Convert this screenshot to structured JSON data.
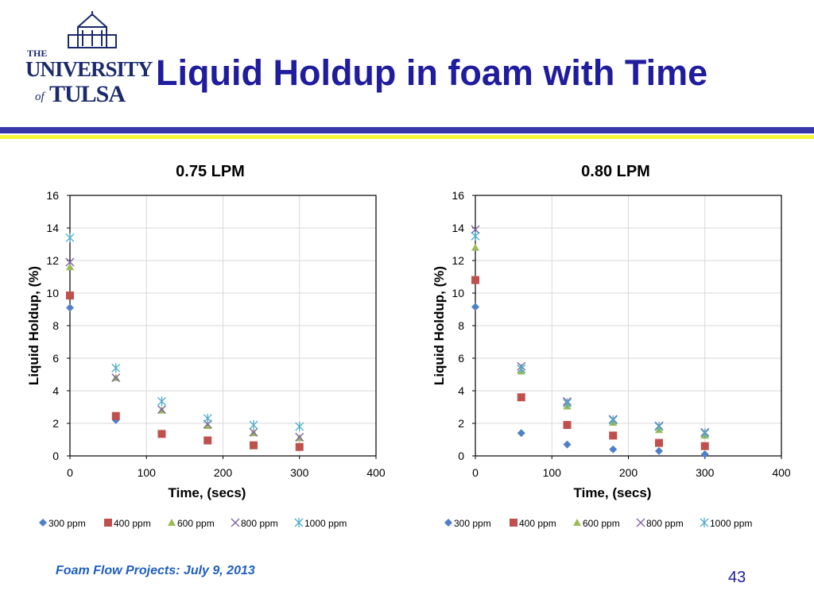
{
  "header": {
    "title": "Liquid Holdup in foam with Time",
    "logo_the": "THE",
    "logo_university": "UNIVERSITY",
    "logo_of": "of",
    "logo_tulsa": "TULSA"
  },
  "footer": {
    "text": "Foam Flow Projects: July 9, 2013",
    "page_number": "43"
  },
  "colors": {
    "title": "#1f1c9e",
    "band_blue": "#3636a8",
    "band_yellow": "#f5f53a",
    "series": [
      "#4f7fc8",
      "#c0504d",
      "#9bbb59",
      "#8064a2",
      "#4bacc6"
    ]
  },
  "chart_data": [
    {
      "type": "scatter",
      "title": "0.75 LPM",
      "xlabel": "Time, (secs)",
      "ylabel": "Liquid Holdup, (%)",
      "xlim": [
        0,
        400
      ],
      "ylim": [
        0,
        16
      ],
      "xticks": [
        0,
        100,
        200,
        300,
        400
      ],
      "yticks": [
        0,
        2,
        4,
        6,
        8,
        10,
        12,
        14,
        16
      ],
      "grid": "vertical",
      "legend": "bottom",
      "series": [
        {
          "name": "300 ppm",
          "marker": "diamond",
          "x": [
            0,
            60,
            120,
            180,
            240,
            300
          ],
          "y": [
            9.1,
            2.2,
            1.35,
            0.95,
            0.65,
            0.55
          ]
        },
        {
          "name": "400 ppm",
          "marker": "square",
          "x": [
            0,
            60,
            120,
            180,
            240,
            300
          ],
          "y": [
            9.85,
            2.45,
            1.35,
            0.95,
            0.65,
            0.55
          ]
        },
        {
          "name": "600 ppm",
          "marker": "triangle",
          "x": [
            0,
            60,
            120,
            180,
            240,
            300
          ],
          "y": [
            11.6,
            4.8,
            2.8,
            1.85,
            1.4,
            1.1
          ]
        },
        {
          "name": "800 ppm",
          "marker": "x",
          "x": [
            0,
            60,
            120,
            180,
            240,
            300
          ],
          "y": [
            11.9,
            4.8,
            2.85,
            1.95,
            1.45,
            1.15
          ]
        },
        {
          "name": "1000 ppm",
          "marker": "star",
          "x": [
            0,
            60,
            120,
            180,
            240,
            300
          ],
          "y": [
            13.4,
            5.4,
            3.35,
            2.3,
            1.9,
            1.8
          ]
        }
      ]
    },
    {
      "type": "scatter",
      "title": "0.80 LPM",
      "xlabel": "Time, (secs)",
      "ylabel": "Liquid Holdup, (%)",
      "xlim": [
        0,
        400
      ],
      "ylim": [
        0,
        16
      ],
      "xticks": [
        0,
        100,
        200,
        300,
        400
      ],
      "yticks": [
        0,
        2,
        4,
        6,
        8,
        10,
        12,
        14,
        16
      ],
      "grid": "vertical",
      "legend": "bottom",
      "series": [
        {
          "name": "300 ppm",
          "marker": "diamond",
          "x": [
            0,
            60,
            120,
            180,
            240,
            300
          ],
          "y": [
            9.15,
            1.4,
            0.7,
            0.4,
            0.3,
            0.1
          ]
        },
        {
          "name": "400 ppm",
          "marker": "square",
          "x": [
            0,
            60,
            120,
            180,
            240,
            300
          ],
          "y": [
            10.8,
            3.6,
            1.9,
            1.25,
            0.8,
            0.6
          ]
        },
        {
          "name": "600 ppm",
          "marker": "triangle",
          "x": [
            0,
            60,
            120,
            180,
            240,
            300
          ],
          "y": [
            12.8,
            5.2,
            3.05,
            2.05,
            1.6,
            1.25
          ]
        },
        {
          "name": "800 ppm",
          "marker": "x",
          "x": [
            0,
            60,
            120,
            180,
            240,
            300
          ],
          "y": [
            13.9,
            5.5,
            3.35,
            2.25,
            1.85,
            1.45
          ]
        },
        {
          "name": "1000 ppm",
          "marker": "star",
          "x": [
            0,
            60,
            120,
            180,
            240,
            300
          ],
          "y": [
            13.5,
            5.35,
            3.25,
            2.2,
            1.8,
            1.4
          ]
        }
      ]
    }
  ]
}
